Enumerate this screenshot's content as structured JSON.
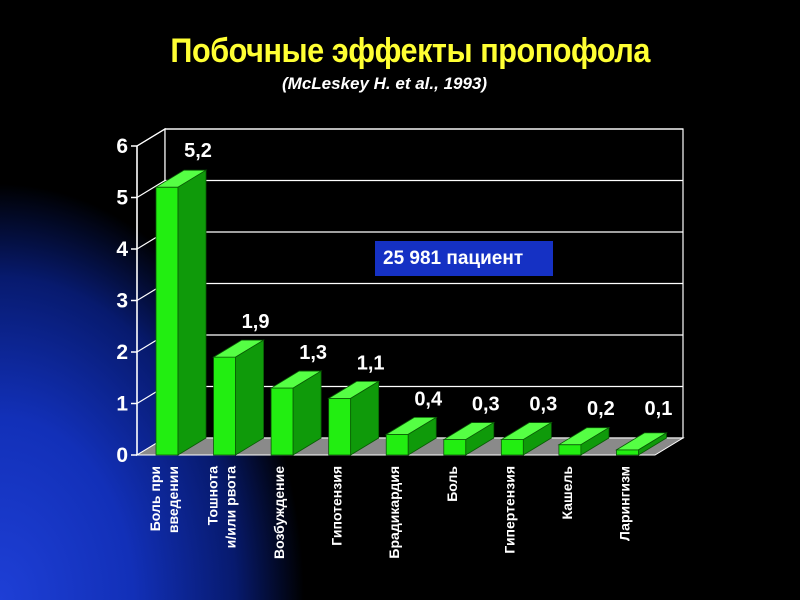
{
  "title": "Побочные эффекты пропофола",
  "subtitle": "(McLeskey H. et al., 1993)",
  "annotation": "25 981 пациент",
  "colors": {
    "background": "#000000",
    "glow": "#1e3fd6",
    "title": "#ffff33",
    "bar_front": "#22ee11",
    "bar_top": "#55ff44",
    "bar_side": "#0f9a0a",
    "annotation_bg": "#1531c4"
  },
  "chart_data": {
    "type": "bar",
    "bar_style": "3d",
    "categories": [
      "Боль при\nвведении",
      "Тошнота\nи/или рвота",
      "Возбуждение",
      "Гипотензия",
      "Брадикардия",
      "Боль",
      "Гипертензия",
      "Кашель",
      "Ларингизм"
    ],
    "values": [
      5.2,
      1.9,
      1.3,
      1.1,
      0.4,
      0.3,
      0.3,
      0.2,
      0.1
    ],
    "value_labels": [
      "5,2",
      "1,9",
      "1,3",
      "1,1",
      "0,4",
      "0,3",
      "0,3",
      "0,2",
      "0,1"
    ],
    "ylim": [
      0,
      6
    ],
    "y_ticks": [
      0,
      1,
      2,
      3,
      4,
      5,
      6
    ],
    "grid": true
  }
}
